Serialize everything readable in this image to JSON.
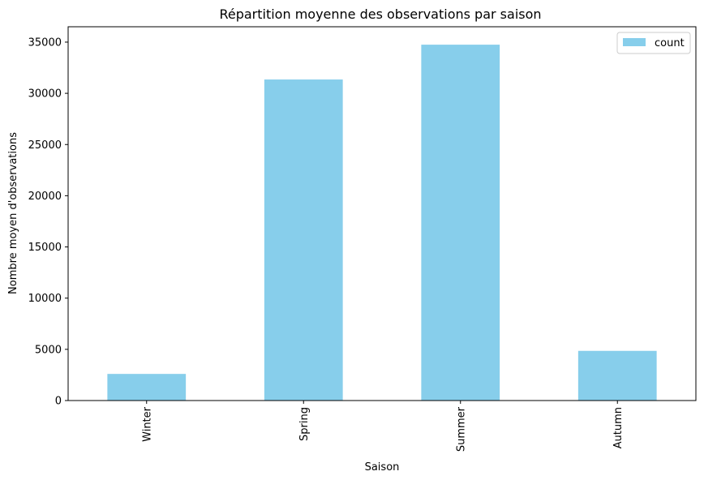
{
  "colors": {
    "bar": "#87ceeb",
    "axis": "#000000",
    "background": "#ffffff"
  },
  "chart_data": {
    "type": "bar",
    "title": "Répartition moyenne des observations par saison",
    "xlabel": "Saison",
    "ylabel": "Nombre moyen d'observations",
    "categories": [
      "Winter",
      "Spring",
      "Summer",
      "Autumn"
    ],
    "series": [
      {
        "name": "count",
        "values": [
          2600,
          31350,
          34750,
          4850
        ]
      }
    ],
    "ylim": [
      0,
      36500
    ],
    "yticks": [
      0,
      5000,
      10000,
      15000,
      20000,
      25000,
      30000,
      35000
    ],
    "ytick_labels": [
      "0",
      "5000",
      "10000",
      "15000",
      "20000",
      "25000",
      "30000",
      "35000"
    ],
    "grid": false,
    "legend_position": "top-right",
    "xtick_rotation_deg": 90
  }
}
